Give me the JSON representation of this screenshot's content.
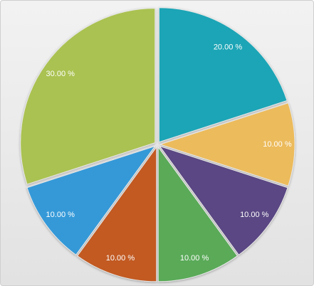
{
  "chart_data": {
    "type": "pie",
    "categories": [
      null,
      null,
      null,
      null,
      null,
      null,
      null
    ],
    "values": [
      20,
      10,
      10,
      10,
      10,
      10,
      30
    ],
    "value_labels": [
      "20.00 %",
      "10.00 %",
      "10.00 %",
      "10.00 %",
      "10.00 %",
      "10.00 %",
      "30.00 %"
    ],
    "colors": [
      "#1ea5b6",
      "#ecbb5c",
      "#5a4683",
      "#5aaa58",
      "#c25a20",
      "#3599d8",
      "#aac251"
    ]
  }
}
